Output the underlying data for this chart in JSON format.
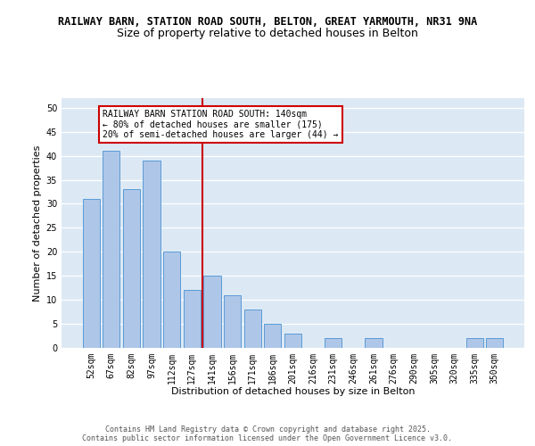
{
  "title1": "RAILWAY BARN, STATION ROAD SOUTH, BELTON, GREAT YARMOUTH, NR31 9NA",
  "title2": "Size of property relative to detached houses in Belton",
  "xlabel": "Distribution of detached houses by size in Belton",
  "ylabel": "Number of detached properties",
  "categories": [
    "52sqm",
    "67sqm",
    "82sqm",
    "97sqm",
    "112sqm",
    "127sqm",
    "141sqm",
    "156sqm",
    "171sqm",
    "186sqm",
    "201sqm",
    "216sqm",
    "231sqm",
    "246sqm",
    "261sqm",
    "276sqm",
    "290sqm",
    "305sqm",
    "320sqm",
    "335sqm",
    "350sqm"
  ],
  "values": [
    31,
    41,
    33,
    39,
    20,
    12,
    15,
    11,
    8,
    5,
    3,
    0,
    2,
    0,
    2,
    0,
    0,
    0,
    0,
    2,
    2
  ],
  "bar_color": "#aec6e8",
  "bar_edge_color": "#5b9bd5",
  "vline_x_index": 6,
  "vline_color": "#cc0000",
  "annotation_text": "RAILWAY BARN STATION ROAD SOUTH: 140sqm\n← 80% of detached houses are smaller (175)\n20% of semi-detached houses are larger (44) →",
  "annotation_box_color": "#ffffff",
  "annotation_box_edge": "#cc0000",
  "ylim": [
    0,
    52
  ],
  "yticks": [
    0,
    5,
    10,
    15,
    20,
    25,
    30,
    35,
    40,
    45,
    50
  ],
  "background_color": "#dce9f5",
  "footer_text": "Contains HM Land Registry data © Crown copyright and database right 2025.\nContains public sector information licensed under the Open Government Licence v3.0.",
  "title1_fontsize": 8.5,
  "title2_fontsize": 9,
  "axis_label_fontsize": 8,
  "tick_fontsize": 7,
  "annotation_fontsize": 7,
  "footer_fontsize": 6
}
